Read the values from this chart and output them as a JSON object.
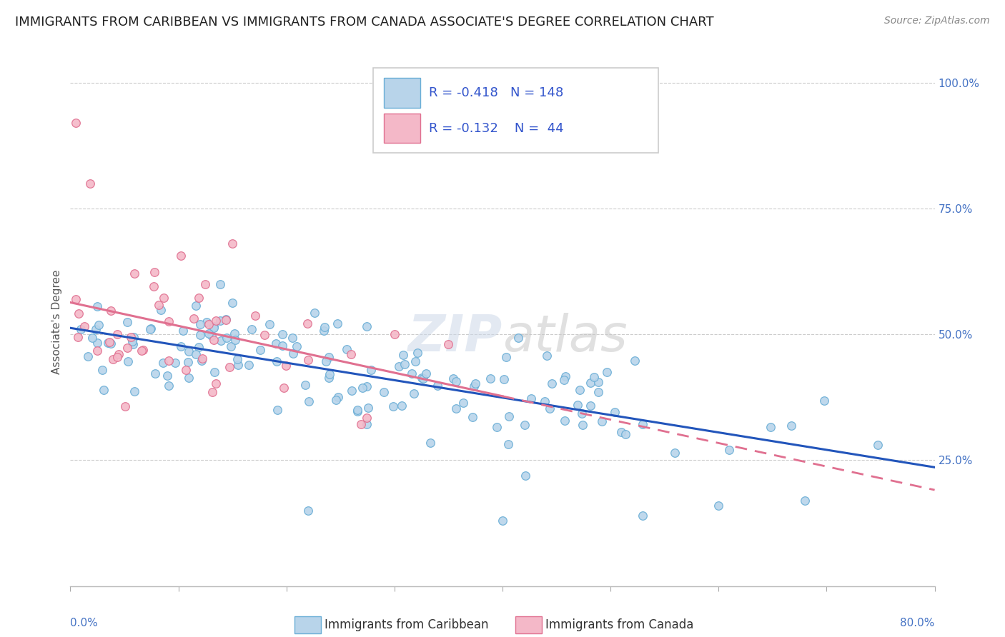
{
  "title": "IMMIGRANTS FROM CARIBBEAN VS IMMIGRANTS FROM CANADA ASSOCIATE'S DEGREE CORRELATION CHART",
  "source": "Source: ZipAtlas.com",
  "ylabel": "Associate's Degree",
  "xlim": [
    0.0,
    0.8
  ],
  "ylim": [
    0.0,
    1.05
  ],
  "yticks": [
    0.25,
    0.5,
    0.75,
    1.0
  ],
  "ytick_labels": [
    "25.0%",
    "50.0%",
    "75.0%",
    "100.0%"
  ],
  "series1_color": "#b8d4ea",
  "series1_edge": "#6aaed6",
  "series2_color": "#f4b8c8",
  "series2_edge": "#e07090",
  "line1_color": "#2255bb",
  "line2_color": "#e07090",
  "R1": -0.418,
  "N1": 148,
  "R2": -0.132,
  "N2": 44,
  "legend_label1": "Immigrants from Caribbean",
  "legend_label2": "Immigrants from Canada",
  "title_fontsize": 13,
  "label_fontsize": 11,
  "tick_fontsize": 11,
  "legend_fontsize": 13,
  "background_color": "#ffffff",
  "grid_color": "#cccccc"
}
